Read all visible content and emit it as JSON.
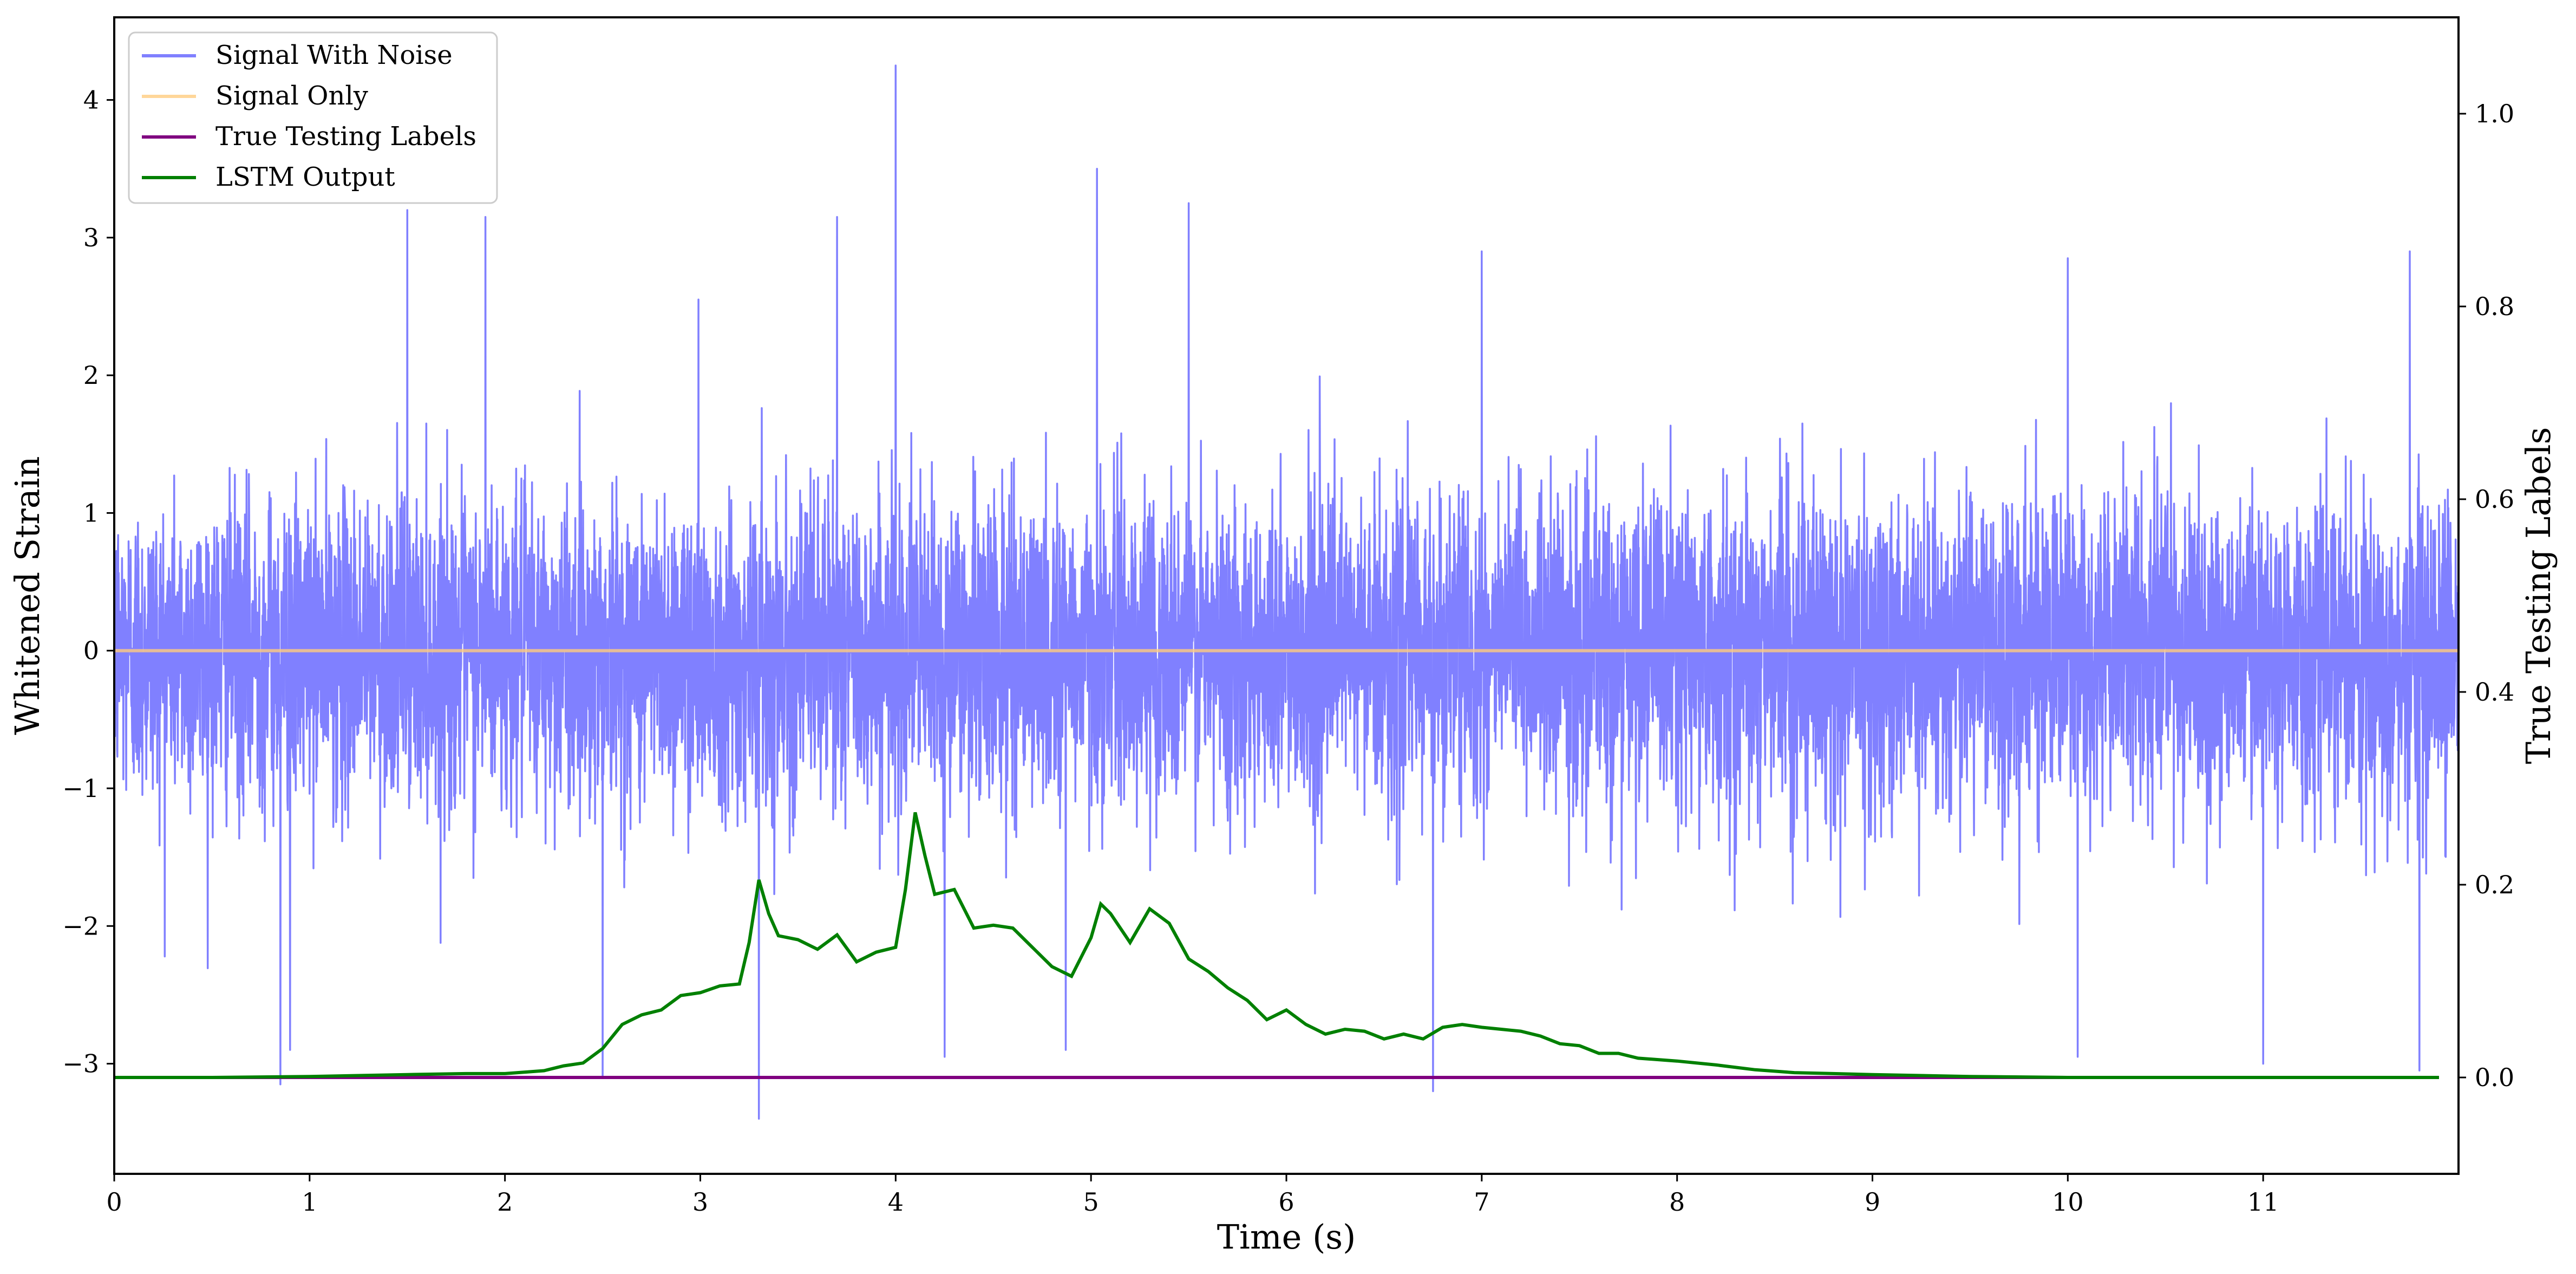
{
  "chart_data": {
    "type": "line",
    "xlabel": "Time (s)",
    "ylabel_left": "Whitened Strain",
    "ylabel_right": "True Testing Labels",
    "xlim": [
      0,
      12
    ],
    "ylim_left": [
      -3.8,
      4.6
    ],
    "ylim_right": [
      -0.1,
      1.1
    ],
    "x_ticks": [
      0,
      1,
      2,
      3,
      4,
      5,
      6,
      7,
      8,
      9,
      10,
      11
    ],
    "x_tick_labels": [
      "0",
      "1",
      "2",
      "3",
      "4",
      "5",
      "6",
      "7",
      "8",
      "9",
      "10",
      "11"
    ],
    "y_left_ticks": [
      -3,
      -2,
      -1,
      0,
      1,
      2,
      3,
      4
    ],
    "y_left_tick_labels": [
      "−3",
      "−2",
      "−1",
      "0",
      "1",
      "2",
      "3",
      "4"
    ],
    "y_right_ticks": [
      0.0,
      0.2,
      0.4,
      0.6,
      0.8,
      1.0
    ],
    "y_right_tick_labels": [
      "0.0",
      "0.2",
      "0.4",
      "0.6",
      "0.8",
      "1.0"
    ],
    "grid": false,
    "legend_position": "upper-left",
    "series": [
      {
        "name": "Signal With Noise",
        "axis": "left",
        "color": "#8080ff",
        "description_values": {
          "noise_std": 0.55,
          "spike_peaks": [
            [
              0.85,
              -3.15
            ],
            [
              0.9,
              -2.9
            ],
            [
              1.5,
              3.2
            ],
            [
              1.9,
              3.15
            ],
            [
              2.5,
              -3.1
            ],
            [
              2.99,
              2.55
            ],
            [
              3.3,
              -3.4
            ],
            [
              3.7,
              3.15
            ],
            [
              4.0,
              4.25
            ],
            [
              4.25,
              -2.95
            ],
            [
              4.87,
              -2.9
            ],
            [
              5.03,
              3.5
            ],
            [
              5.5,
              3.25
            ],
            [
              6.75,
              -3.2
            ],
            [
              7.0,
              2.9
            ],
            [
              10.0,
              2.85
            ],
            [
              10.05,
              -2.95
            ],
            [
              11.0,
              -3.0
            ],
            [
              11.75,
              2.9
            ],
            [
              11.8,
              -3.05
            ]
          ]
        }
      },
      {
        "name": "Signal Only",
        "axis": "left",
        "color": "#ffcc80",
        "x": [
          0,
          12
        ],
        "y": [
          0,
          0
        ]
      },
      {
        "name": "True Testing Labels",
        "axis": "right",
        "color": "#800080",
        "x": [
          0,
          11.9
        ],
        "y": [
          0,
          0
        ]
      },
      {
        "name": "LSTM Output",
        "axis": "right",
        "color": "#008000",
        "x": [
          0,
          0.5,
          1.0,
          1.5,
          1.8,
          2.0,
          2.2,
          2.3,
          2.4,
          2.5,
          2.6,
          2.7,
          2.8,
          2.9,
          3.0,
          3.1,
          3.2,
          3.25,
          3.3,
          3.35,
          3.4,
          3.5,
          3.6,
          3.7,
          3.8,
          3.9,
          4.0,
          4.05,
          4.1,
          4.15,
          4.2,
          4.3,
          4.4,
          4.5,
          4.6,
          4.7,
          4.8,
          4.9,
          5.0,
          5.05,
          5.1,
          5.2,
          5.3,
          5.4,
          5.5,
          5.6,
          5.7,
          5.8,
          5.9,
          6.0,
          6.1,
          6.2,
          6.3,
          6.4,
          6.5,
          6.6,
          6.7,
          6.8,
          6.9,
          7.0,
          7.1,
          7.2,
          7.3,
          7.4,
          7.5,
          7.6,
          7.7,
          7.8,
          8.0,
          8.2,
          8.4,
          8.6,
          8.8,
          9.0,
          9.5,
          10.0,
          10.5,
          11.0,
          11.5,
          11.9
        ],
        "y": [
          0,
          0,
          0.001,
          0.003,
          0.004,
          0.004,
          0.007,
          0.012,
          0.015,
          0.03,
          0.055,
          0.065,
          0.07,
          0.085,
          0.088,
          0.095,
          0.097,
          0.14,
          0.205,
          0.17,
          0.147,
          0.143,
          0.133,
          0.148,
          0.12,
          0.13,
          0.135,
          0.195,
          0.275,
          0.23,
          0.19,
          0.195,
          0.155,
          0.158,
          0.155,
          0.135,
          0.115,
          0.105,
          0.145,
          0.18,
          0.17,
          0.14,
          0.175,
          0.16,
          0.123,
          0.11,
          0.093,
          0.08,
          0.06,
          0.07,
          0.055,
          0.045,
          0.05,
          0.048,
          0.04,
          0.045,
          0.04,
          0.052,
          0.055,
          0.052,
          0.05,
          0.048,
          0.043,
          0.035,
          0.033,
          0.025,
          0.025,
          0.02,
          0.017,
          0.013,
          0.008,
          0.005,
          0.004,
          0.003,
          0.001,
          0,
          0,
          0,
          0,
          0
        ]
      }
    ]
  }
}
